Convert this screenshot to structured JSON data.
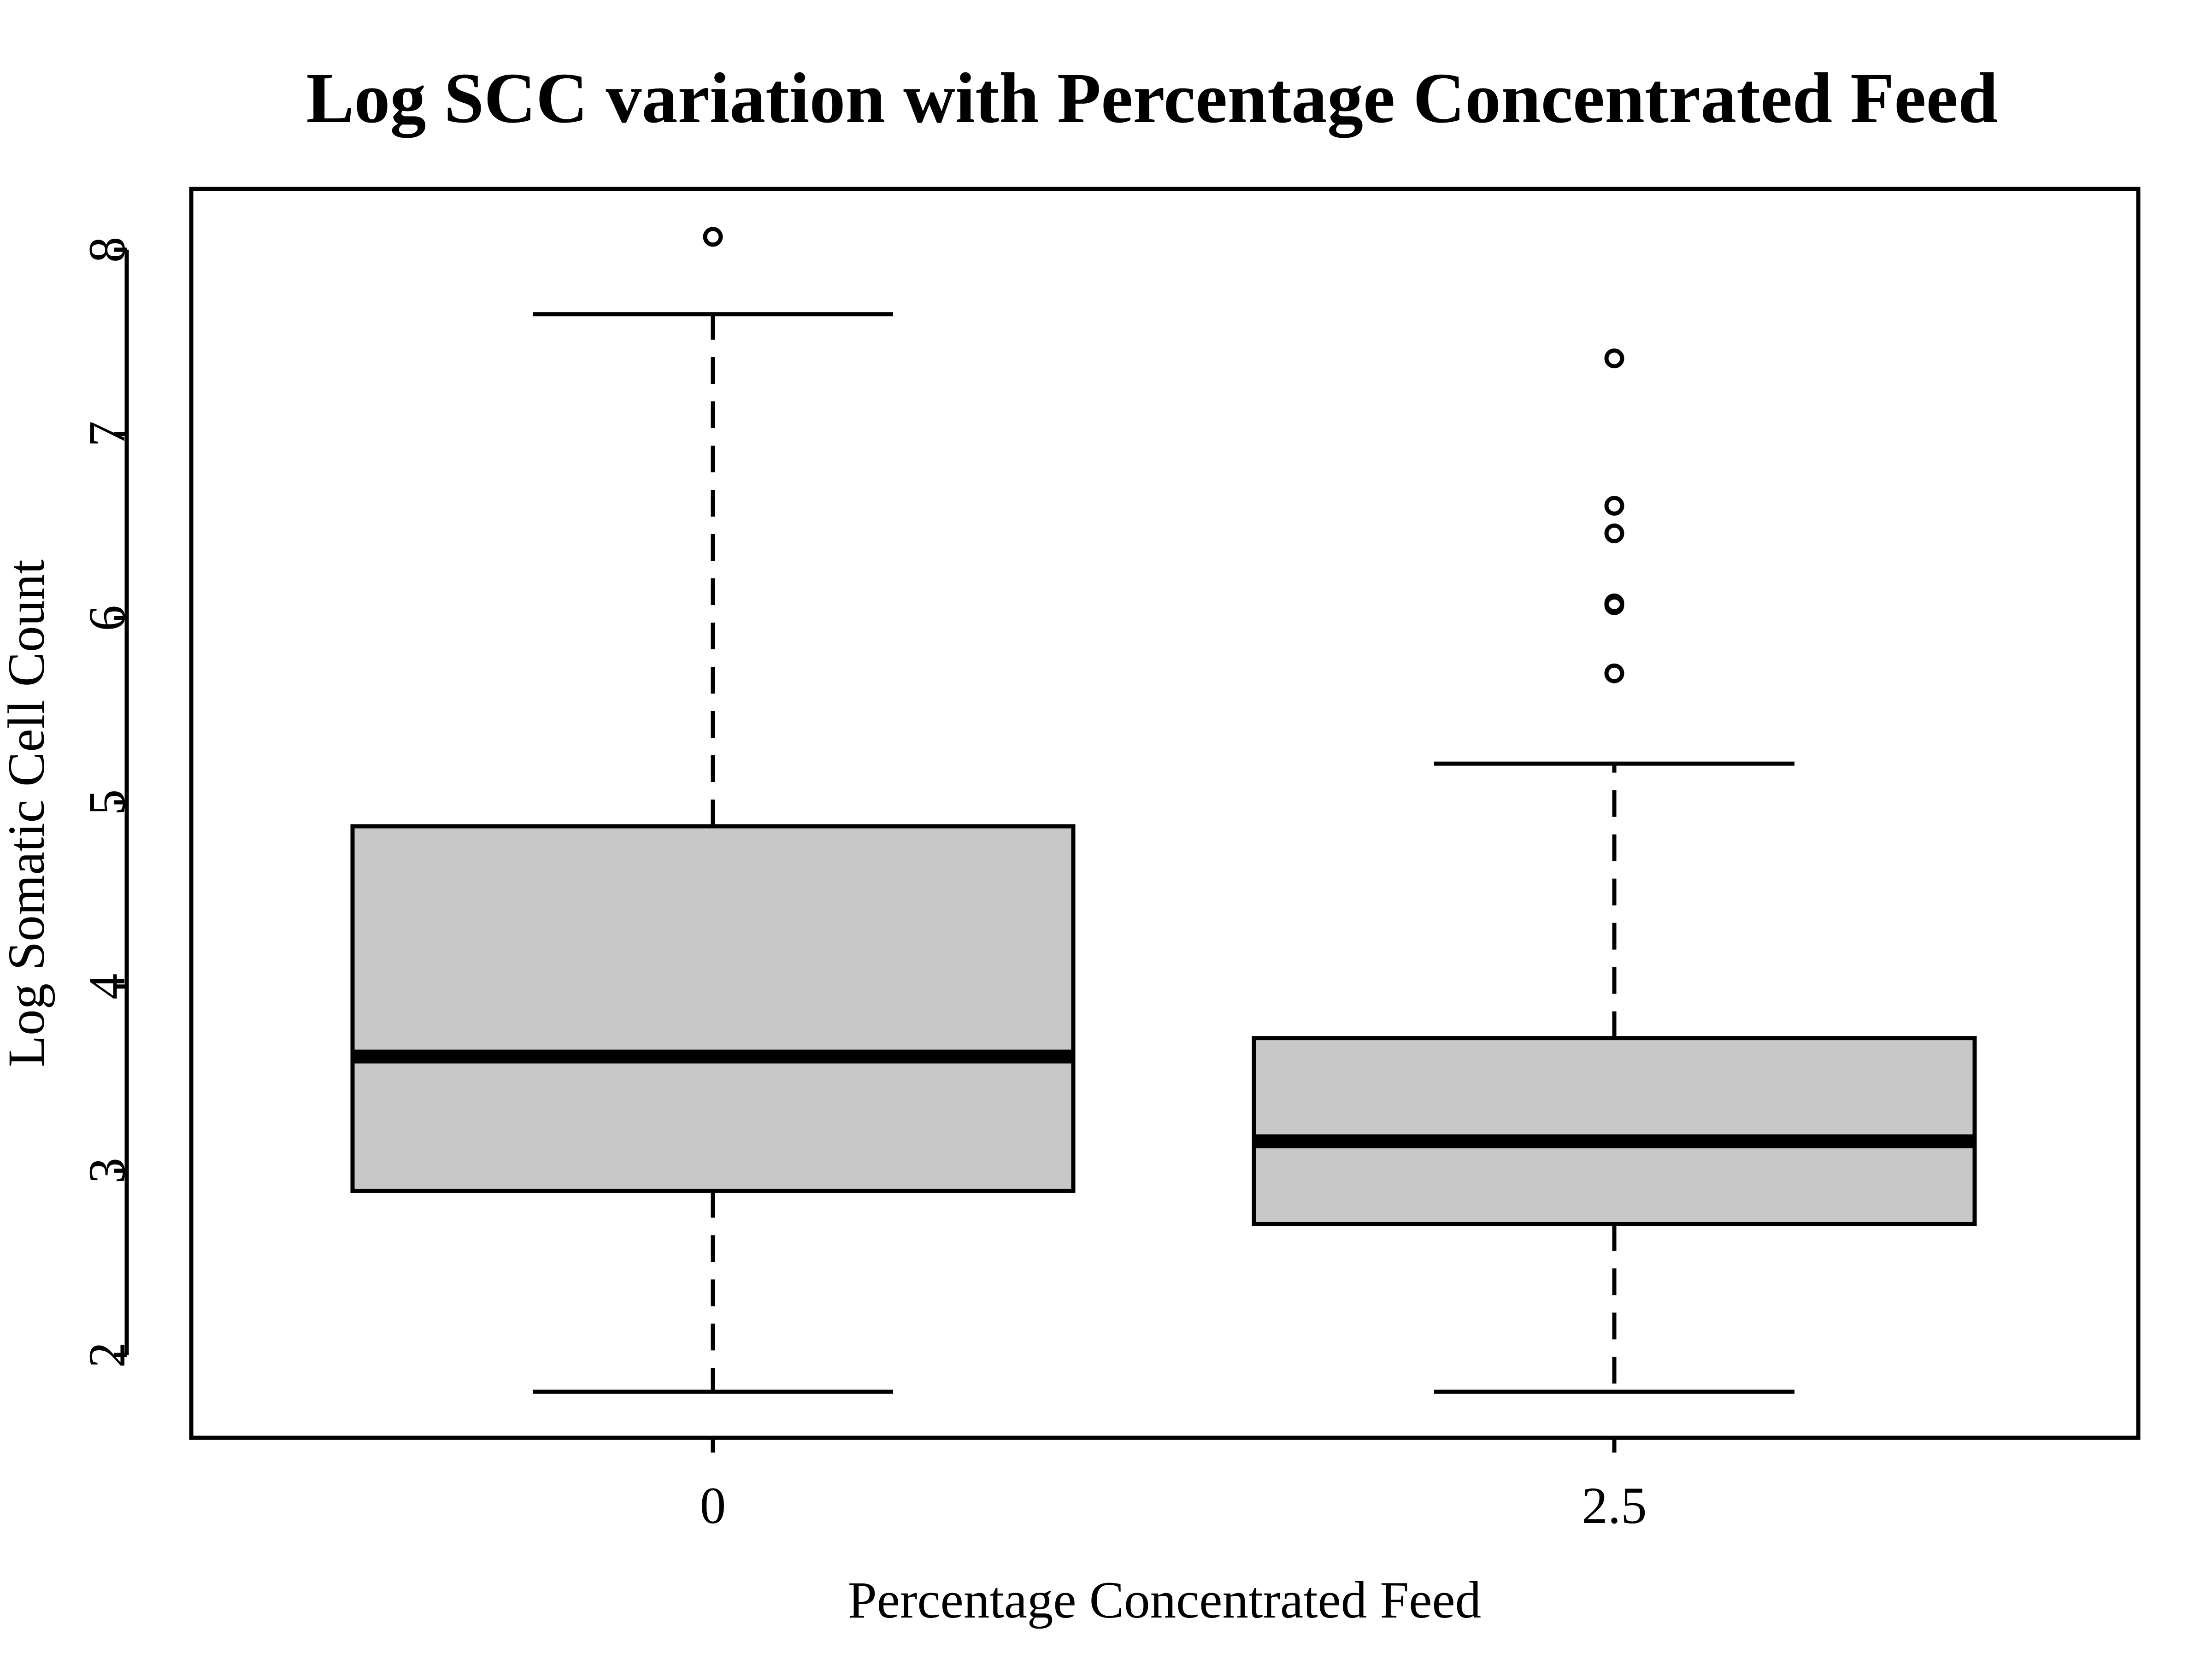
{
  "chart_data": {
    "type": "boxplot",
    "title": "Log SCC variation with Percentage Concentrated Feed",
    "xlabel": "Percentage Concentrated Feed",
    "ylabel": "Log Somatic Cell Count",
    "categories": [
      "0",
      "2.5"
    ],
    "y_ticks": [
      2,
      3,
      4,
      5,
      6,
      7,
      8
    ],
    "ylim": [
      1.55,
      8.33
    ],
    "grid": false,
    "box_fill": "#c8c8c8",
    "boxes": [
      {
        "category": "0",
        "whisker_low": 1.8,
        "q1": 2.89,
        "median": 3.62,
        "q3": 4.87,
        "whisker_high": 7.65,
        "outliers": [
          8.07
        ]
      },
      {
        "category": "2.5",
        "whisker_low": 1.8,
        "q1": 2.71,
        "median": 3.16,
        "q3": 3.72,
        "whisker_high": 5.21,
        "outliers": [
          5.7,
          6.07,
          6.08,
          6.46,
          6.61,
          7.41
        ]
      }
    ]
  }
}
